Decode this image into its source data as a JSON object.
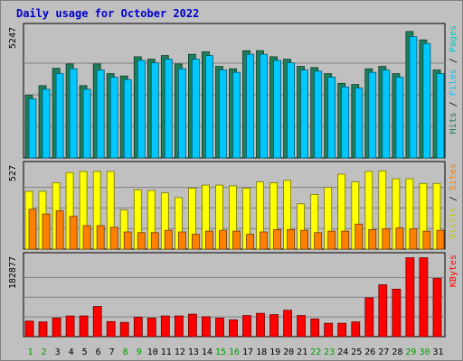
{
  "chart_data": {
    "type": "bar",
    "title": "Daily usage for October 2022",
    "categories": [
      "1",
      "2",
      "3",
      "4",
      "5",
      "6",
      "7",
      "8",
      "9",
      "10",
      "11",
      "12",
      "13",
      "14",
      "15",
      "16",
      "17",
      "18",
      "19",
      "20",
      "21",
      "22",
      "23",
      "24",
      "25",
      "26",
      "27",
      "28",
      "29",
      "30",
      "31"
    ],
    "weekend_days": [
      "1",
      "2",
      "8",
      "9",
      "15",
      "16",
      "22",
      "23",
      "29",
      "30"
    ],
    "panels": [
      {
        "name": "hits-files-pages",
        "ymax": 5247,
        "ymax_label": "5247",
        "axis_labels": [
          "Pages",
          "Files",
          "Hits"
        ],
        "series": [
          {
            "name": "Hits",
            "color": "#1e7f5c",
            "values": [
              2600,
              3000,
              3720,
              3900,
              3000,
              3900,
              3500,
              3400,
              4200,
              4100,
              4250,
              3900,
              4300,
              4400,
              3800,
              3700,
              4450,
              4450,
              4200,
              4100,
              3800,
              3750,
              3500,
              3100,
              3050,
              3700,
              3800,
              3500,
              5247,
              4900,
              3650
            ]
          },
          {
            "name": "Files",
            "color": "#00c8ff",
            "values": [
              2450,
              2850,
              3500,
              3700,
              2850,
              3650,
              3350,
              3250,
              4050,
              3950,
              4100,
              3700,
              4100,
              4250,
              3650,
              3550,
              4300,
              4300,
              4050,
              3950,
              3650,
              3600,
              3350,
              2950,
              2900,
              3550,
              3650,
              3350,
              5030,
              4750,
              3500
            ]
          },
          {
            "name": "Pages",
            "color": "#00ffff",
            "values": [
              0,
              0,
              0,
              0,
              0,
              0,
              0,
              0,
              0,
              0,
              0,
              0,
              0,
              0,
              0,
              0,
              0,
              0,
              0,
              0,
              0,
              0,
              0,
              0,
              0,
              0,
              0,
              0,
              0,
              0,
              0
            ]
          }
        ]
      },
      {
        "name": "visits-sites",
        "ymax": 527,
        "ymax_label": "527",
        "axis_labels": [
          "Sites",
          "Visits"
        ],
        "series": [
          {
            "name": "Visits",
            "color": "#ffff00",
            "values": [
              370,
              370,
              425,
              490,
              497,
              497,
              497,
              250,
              380,
              375,
              360,
              330,
              390,
              410,
              410,
              405,
              390,
              430,
              425,
              440,
              290,
              350,
              395,
              480,
              430,
              497,
              500,
              450,
              450,
              420,
              420
            ]
          },
          {
            "name": "Sites",
            "color": "#ff8000",
            "values": [
              255,
              225,
              245,
              210,
              150,
              150,
              140,
              110,
              105,
              105,
              120,
              110,
              95,
              115,
              120,
              115,
              95,
              110,
              125,
              125,
              120,
              105,
              115,
              115,
              160,
              125,
              130,
              135,
              130,
              115,
              120
            ]
          }
        ]
      },
      {
        "name": "kbytes",
        "ymax": 182877,
        "ymax_label": "182877",
        "axis_labels": [
          "KBytes"
        ],
        "series": [
          {
            "name": "KBytes",
            "color": "#ff0000",
            "values": [
              36000,
              34000,
              43000,
              48000,
              48000,
              70000,
              35000,
              33000,
              45000,
              43000,
              48000,
              48000,
              52000,
              46000,
              43000,
              39000,
              49000,
              54000,
              51000,
              61000,
              49000,
              41000,
              31000,
              31000,
              34000,
              90000,
              120000,
              110000,
              182877,
              182877,
              135000
            ]
          }
        ]
      }
    ]
  }
}
